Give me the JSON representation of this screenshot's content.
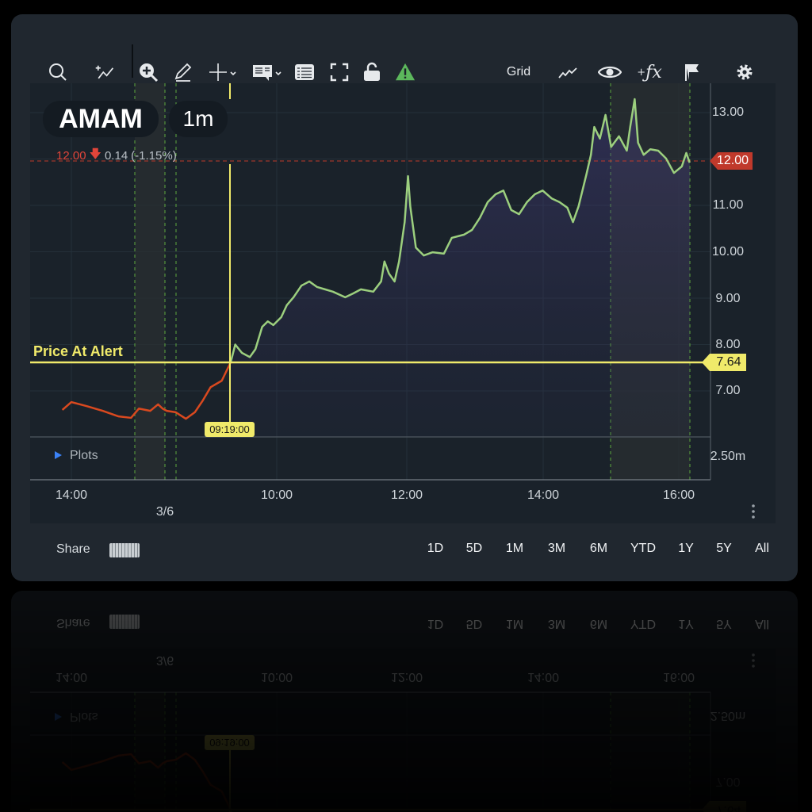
{
  "toolbar": {
    "grid_label": "Grid",
    "icons": [
      "search-icon",
      "add-indicator-icon",
      "zoom-in-icon",
      "pencil-icon",
      "crosshair-icon",
      "comment-icon",
      "list-icon",
      "fullscreen-icon",
      "unlock-icon",
      "warning-icon",
      "line-chart-icon",
      "eye-icon",
      "fx-icon",
      "flag-icon",
      "gear-icon"
    ]
  },
  "header": {
    "symbol": "AMAM",
    "interval": "1m",
    "last": "12.00",
    "change": "0.14",
    "change_pct": "(-1.15%)"
  },
  "colors": {
    "down": "#e0453a",
    "up_line": "#9ccf7e",
    "down_line": "#d9491f",
    "alert": "#f0ea6a",
    "accent_tag": "#c0392b"
  },
  "chart_data": {
    "type": "line",
    "y_ticks": [
      "13.00",
      "11.00",
      "10.00",
      "9.00",
      "8.00",
      "7.00"
    ],
    "x_ticks": [
      "14:00",
      "10:00",
      "12:00",
      "14:00",
      "16:00"
    ],
    "date_label": "3/6",
    "ylim": [
      5.5,
      13.6
    ],
    "last_price_tag": "12.00",
    "alert": {
      "label": "Price At Alert",
      "price": "7.64",
      "time": "09:19:00"
    },
    "volume_pane": {
      "label": "Plots",
      "tick": "2.50m"
    },
    "series": [
      {
        "color": "#d9491f",
        "points": [
          [
            "prev",
            "13:52",
            6.59
          ],
          [
            "prev",
            "14:00",
            6.76
          ],
          [
            "prev",
            "14:14",
            6.67
          ],
          [
            "prev",
            "14:28",
            6.57
          ],
          [
            "prev",
            "14:42",
            6.45
          ],
          [
            "prev",
            "14:53",
            6.42
          ],
          [
            "prev",
            "15:00",
            6.62
          ],
          [
            "prev",
            "15:10",
            6.57
          ],
          [
            "prev",
            "15:17",
            6.71
          ],
          [
            "prev",
            "15:21",
            6.62
          ],
          [
            "cur",
            "08:22",
            6.57
          ],
          [
            "cur",
            "08:30",
            6.54
          ],
          [
            "cur",
            "08:39",
            6.4
          ],
          [
            "cur",
            "08:47",
            6.54
          ],
          [
            "cur",
            "08:54",
            6.79
          ],
          [
            "cur",
            "09:01",
            7.08
          ],
          [
            "cur",
            "09:11",
            7.22
          ],
          [
            "cur",
            "09:19",
            7.62
          ]
        ]
      },
      {
        "color": "#9ccf7e",
        "points": [
          [
            "cur",
            "09:19",
            7.62
          ],
          [
            "cur",
            "09:23",
            8.0
          ],
          [
            "cur",
            "09:29",
            7.82
          ],
          [
            "cur",
            "09:36",
            7.73
          ],
          [
            "cur",
            "09:41",
            7.9
          ],
          [
            "cur",
            "09:47",
            8.38
          ],
          [
            "cur",
            "09:52",
            8.5
          ],
          [
            "cur",
            "09:57",
            8.42
          ],
          [
            "cur",
            "10:04",
            8.59
          ],
          [
            "cur",
            "10:09",
            8.85
          ],
          [
            "cur",
            "10:15",
            9.02
          ],
          [
            "cur",
            "10:22",
            9.27
          ],
          [
            "cur",
            "10:29",
            9.36
          ],
          [
            "cur",
            "10:36",
            9.24
          ],
          [
            "cur",
            "10:43",
            9.19
          ],
          [
            "cur",
            "10:50",
            9.14
          ],
          [
            "cur",
            "11:01",
            9.02
          ],
          [
            "cur",
            "11:08",
            9.1
          ],
          [
            "cur",
            "11:15",
            9.19
          ],
          [
            "cur",
            "11:26",
            9.14
          ],
          [
            "cur",
            "11:33",
            9.36
          ],
          [
            "cur",
            "11:36",
            9.79
          ],
          [
            "cur",
            "11:40",
            9.53
          ],
          [
            "cur",
            "11:45",
            9.36
          ],
          [
            "cur",
            "11:49",
            9.79
          ],
          [
            "cur",
            "11:54",
            10.64
          ],
          [
            "cur",
            "11:57",
            11.63
          ],
          [
            "cur",
            "11:59",
            10.98
          ],
          [
            "cur",
            "12:04",
            10.09
          ],
          [
            "cur",
            "12:11",
            9.92
          ],
          [
            "cur",
            "12:19",
            9.99
          ],
          [
            "cur",
            "12:29",
            9.96
          ],
          [
            "cur",
            "12:36",
            10.3
          ],
          [
            "cur",
            "12:47",
            10.37
          ],
          [
            "cur",
            "12:54",
            10.47
          ],
          [
            "cur",
            "13:01",
            10.73
          ],
          [
            "cur",
            "13:08",
            11.07
          ],
          [
            "cur",
            "13:15",
            11.24
          ],
          [
            "cur",
            "13:22",
            11.32
          ],
          [
            "cur",
            "13:29",
            10.9
          ],
          [
            "cur",
            "13:36",
            10.81
          ],
          [
            "cur",
            "13:43",
            11.07
          ],
          [
            "cur",
            "13:50",
            11.24
          ],
          [
            "cur",
            "13:57",
            11.32
          ],
          [
            "cur",
            "14:05",
            11.15
          ],
          [
            "cur",
            "14:12",
            11.07
          ],
          [
            "cur",
            "14:19",
            10.95
          ],
          [
            "cur",
            "14:24",
            10.64
          ],
          [
            "cur",
            "14:29",
            10.98
          ],
          [
            "cur",
            "14:36",
            11.67
          ],
          [
            "cur",
            "14:40",
            12.09
          ],
          [
            "cur",
            "14:43",
            12.69
          ],
          [
            "cur",
            "14:48",
            12.44
          ],
          [
            "cur",
            "14:53",
            12.95
          ],
          [
            "cur",
            "14:58",
            12.26
          ],
          [
            "cur",
            "15:05",
            12.49
          ],
          [
            "cur",
            "15:12",
            12.18
          ],
          [
            "cur",
            "15:15",
            12.69
          ],
          [
            "cur",
            "15:19",
            13.29
          ],
          [
            "cur",
            "15:22",
            12.35
          ],
          [
            "cur",
            "15:27",
            12.09
          ],
          [
            "cur",
            "15:33",
            12.21
          ],
          [
            "cur",
            "15:40",
            12.18
          ],
          [
            "cur",
            "15:47",
            12.01
          ],
          [
            "cur",
            "15:54",
            11.7
          ],
          [
            "cur",
            "16:01",
            11.84
          ],
          [
            "cur",
            "16:05",
            12.13
          ],
          [
            "cur",
            "16:08",
            11.92
          ]
        ]
      }
    ]
  },
  "footer": {
    "share": "Share",
    "ranges": [
      "1D",
      "5D",
      "1M",
      "3M",
      "6M",
      "YTD",
      "1Y",
      "5Y",
      "All"
    ]
  }
}
